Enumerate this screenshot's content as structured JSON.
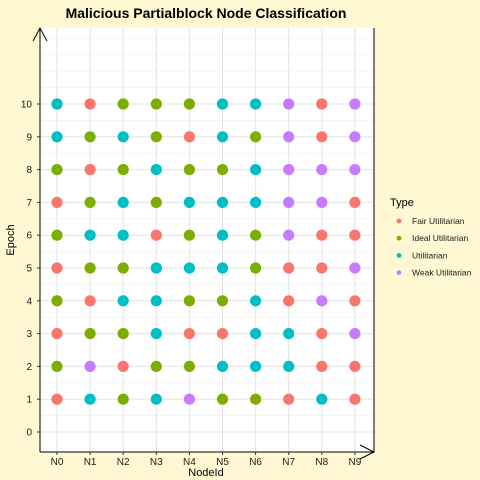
{
  "chart_data": {
    "type": "scatter",
    "title": "Malicious Partialblock Node Classification",
    "xlabel": "NodeId",
    "ylabel": "Epoch",
    "categories": [
      "N0",
      "N1",
      "N2",
      "N3",
      "N4",
      "N5",
      "N6",
      "N7",
      "N8",
      "N9"
    ],
    "y_ticks": [
      0,
      1,
      2,
      3,
      4,
      5,
      6,
      7,
      8,
      9,
      10
    ],
    "ylim": [
      0,
      10
    ],
    "grid": true,
    "legend": {
      "title": "Type",
      "placement": "right",
      "entries": [
        {
          "name": "Fair Utilitarian",
          "color": "#f8766d"
        },
        {
          "name": "Ideal Utilitarian",
          "color": "#7cae00"
        },
        {
          "name": "Utilitarian",
          "color": "#00bfc4"
        },
        {
          "name": "Weak Utilitarian",
          "color": "#c77cff"
        }
      ]
    },
    "types": [
      "Fair Utilitarian",
      "Ideal Utilitarian",
      "Utilitarian",
      "Weak Utilitarian"
    ],
    "epochs": [
      {
        "epoch": 1,
        "types": [
          "Fair Utilitarian",
          "Utilitarian",
          "Ideal Utilitarian",
          "Utilitarian",
          "Weak Utilitarian",
          "Ideal Utilitarian",
          "Ideal Utilitarian",
          "Fair Utilitarian",
          "Utilitarian",
          "Fair Utilitarian"
        ]
      },
      {
        "epoch": 2,
        "types": [
          "Ideal Utilitarian",
          "Weak Utilitarian",
          "Fair Utilitarian",
          "Ideal Utilitarian",
          "Ideal Utilitarian",
          "Utilitarian",
          "Utilitarian",
          "Utilitarian",
          "Fair Utilitarian",
          "Fair Utilitarian"
        ]
      },
      {
        "epoch": 3,
        "types": [
          "Fair Utilitarian",
          "Ideal Utilitarian",
          "Ideal Utilitarian",
          "Utilitarian",
          "Fair Utilitarian",
          "Fair Utilitarian",
          "Utilitarian",
          "Utilitarian",
          "Fair Utilitarian",
          "Weak Utilitarian"
        ]
      },
      {
        "epoch": 4,
        "types": [
          "Ideal Utilitarian",
          "Fair Utilitarian",
          "Utilitarian",
          "Utilitarian",
          "Ideal Utilitarian",
          "Ideal Utilitarian",
          "Utilitarian",
          "Fair Utilitarian",
          "Weak Utilitarian",
          "Fair Utilitarian"
        ]
      },
      {
        "epoch": 5,
        "types": [
          "Fair Utilitarian",
          "Ideal Utilitarian",
          "Ideal Utilitarian",
          "Utilitarian",
          "Utilitarian",
          "Utilitarian",
          "Ideal Utilitarian",
          "Fair Utilitarian",
          "Fair Utilitarian",
          "Weak Utilitarian"
        ]
      },
      {
        "epoch": 6,
        "types": [
          "Ideal Utilitarian",
          "Utilitarian",
          "Utilitarian",
          "Fair Utilitarian",
          "Ideal Utilitarian",
          "Utilitarian",
          "Ideal Utilitarian",
          "Weak Utilitarian",
          "Fair Utilitarian",
          "Fair Utilitarian"
        ]
      },
      {
        "epoch": 7,
        "types": [
          "Fair Utilitarian",
          "Ideal Utilitarian",
          "Utilitarian",
          "Ideal Utilitarian",
          "Utilitarian",
          "Utilitarian",
          "Utilitarian",
          "Weak Utilitarian",
          "Weak Utilitarian",
          "Fair Utilitarian"
        ]
      },
      {
        "epoch": 8,
        "types": [
          "Ideal Utilitarian",
          "Fair Utilitarian",
          "Ideal Utilitarian",
          "Utilitarian",
          "Ideal Utilitarian",
          "Ideal Utilitarian",
          "Utilitarian",
          "Weak Utilitarian",
          "Weak Utilitarian",
          "Weak Utilitarian"
        ]
      },
      {
        "epoch": 9,
        "types": [
          "Utilitarian",
          "Ideal Utilitarian",
          "Utilitarian",
          "Ideal Utilitarian",
          "Fair Utilitarian",
          "Utilitarian",
          "Ideal Utilitarian",
          "Weak Utilitarian",
          "Fair Utilitarian",
          "Weak Utilitarian"
        ]
      },
      {
        "epoch": 10,
        "types": [
          "Utilitarian",
          "Fair Utilitarian",
          "Ideal Utilitarian",
          "Ideal Utilitarian",
          "Ideal Utilitarian",
          "Utilitarian",
          "Utilitarian",
          "Weak Utilitarian",
          "Fair Utilitarian",
          "Weak Utilitarian"
        ]
      }
    ]
  }
}
